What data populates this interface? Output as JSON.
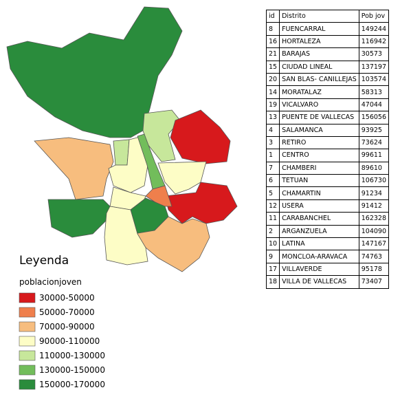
{
  "legend": {
    "title": "Leyenda",
    "subtitle": "poblacionjoven",
    "items": [
      {
        "label": "30000-50000",
        "color": "#d7191c"
      },
      {
        "label": "50000-70000",
        "color": "#ef7f4c"
      },
      {
        "label": "70000-90000",
        "color": "#f7bd7e"
      },
      {
        "label": "90000-110000",
        "color": "#fdfdc6"
      },
      {
        "label": "110000-130000",
        "color": "#c7e79b"
      },
      {
        "label": "130000-150000",
        "color": "#72bd5b"
      },
      {
        "label": "150000-170000",
        "color": "#2a8c3c"
      }
    ]
  },
  "table": {
    "header": [
      "id",
      "Distrito",
      "Pob jov"
    ],
    "rows": [
      [
        8,
        "FUENCARRAL",
        149244
      ],
      [
        16,
        "HORTALEZA",
        116942
      ],
      [
        21,
        "BARAJAS",
        30573
      ],
      [
        15,
        "CIUDAD LINEAL",
        137197
      ],
      [
        20,
        "SAN BLAS- CANILLEJAS",
        103574
      ],
      [
        14,
        "MORATALAZ",
        58313
      ],
      [
        19,
        "VICALVARO",
        47044
      ],
      [
        13,
        "PUENTE DE VALLECAS",
        156056
      ],
      [
        4,
        "SALAMANCA",
        93925
      ],
      [
        3,
        "RETIRO",
        73624
      ],
      [
        1,
        "CENTRO",
        99611
      ],
      [
        7,
        "CHAMBERI",
        89610
      ],
      [
        6,
        "TETUAN",
        106730
      ],
      [
        5,
        "CHAMARTIN",
        91234
      ],
      [
        12,
        "USERA",
        91412
      ],
      [
        11,
        "CARABANCHEL",
        162328
      ],
      [
        2,
        "ARGANZUELA",
        104090
      ],
      [
        10,
        "LATINA",
        147167
      ],
      [
        9,
        "MONCLOA-ARAVACA",
        74763
      ],
      [
        17,
        "VILLAVERDE",
        95178
      ],
      [
        18,
        "VILLA DE VALLECAS",
        73407
      ]
    ]
  }
}
